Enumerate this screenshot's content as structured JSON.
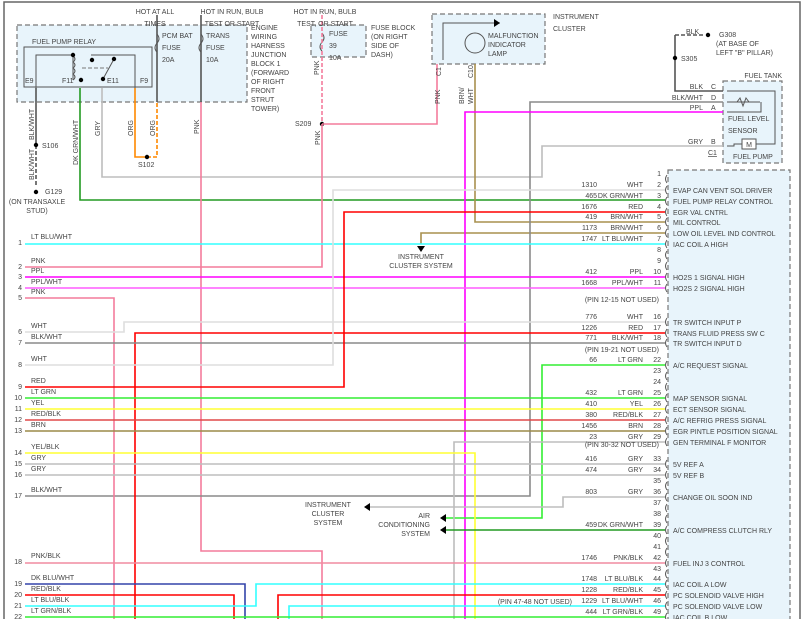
{
  "components": {
    "fuse_block_ej": {
      "hot_label_1": [
        "HOT AT ALL",
        "TIMES"
      ],
      "hot_label_2": [
        "HOT IN RUN, BULB",
        "TEST OR START"
      ],
      "pcm_fuse": [
        "PCM BAT",
        "FUSE",
        "20A"
      ],
      "trans_fuse": [
        "TRANS",
        "FUSE",
        "10A"
      ],
      "location": [
        "ENGINE",
        "WIRING",
        "HARNESS",
        "JUNCTION",
        "BLOCK 1",
        "(FORWARD",
        "OF RIGHT",
        "FRONT",
        "STRUT",
        "TOWER)"
      ]
    },
    "fuel_pump_relay": {
      "title": "FUEL PUMP RELAY",
      "pins": [
        "E9",
        "F11",
        "E11",
        "F9"
      ]
    },
    "fuse_block_dash": {
      "hot_label": [
        "HOT IN RUN, BULB",
        "TEST, OR START"
      ],
      "fuse": [
        "FUSE",
        "39",
        "10A"
      ],
      "location": [
        "FUSE BLOCK",
        "(ON RIGHT",
        "SIDE OF",
        "DASH)"
      ]
    },
    "instrument_cluster": {
      "title": [
        "INSTRUMENT",
        "CLUSTER"
      ],
      "lamp": [
        "MALFUNCTION",
        "INDICATOR",
        "LAMP"
      ],
      "pins": [
        "C1",
        "C10"
      ]
    },
    "ground_g308": {
      "wire": "BLK",
      "name": "G308",
      "location": [
        "(AT BASE OF",
        "LEFT \"B\" PILLAR)"
      ],
      "splice": "S305"
    },
    "fuel_tank": {
      "title": "FUEL TANK",
      "pins": [
        {
          "pin": "C",
          "wire": "BLK"
        },
        {
          "pin": "D",
          "wire": "BLK/WHT"
        },
        {
          "pin": "A",
          "wire": "PPL"
        },
        {
          "pin": "B",
          "wire": "GRY"
        }
      ],
      "connector": "C1",
      "sensor": [
        "FUEL LEVEL",
        "SENSOR"
      ],
      "pump": "FUEL PUMP",
      "motor_symbol": "M"
    },
    "wire_labels": {
      "relay_e9": "BLK/WHT",
      "s106": "S106",
      "ground_wire": "BLK/WHT",
      "g129": "G129",
      "g129_location": [
        "(ON TRANSAXLE",
        "STUD)"
      ],
      "relay_f11": "DK GRN/WHT",
      "relay_e11": "GRY",
      "relay_f9": "ORG",
      "pcm_fuse_out": "ORG",
      "s102": "S102",
      "trans_fuse_out": "PNK",
      "fuse39_out": "PNK",
      "s209": "S209",
      "s209_down": "PNK",
      "c1_wire": "PNK",
      "c10_wire": [
        "BRN/",
        "WHT"
      ]
    },
    "arrows": {
      "instrument_cluster_1": [
        "INSTRUMENT",
        "CLUSTER SYSTEM"
      ],
      "instrument_cluster_2": [
        "INSTRUMENT",
        "CLUSTER",
        "SYSTEM"
      ],
      "air_conditioning": [
        "AIR",
        "CONDITIONING",
        "SYSTEM"
      ]
    }
  },
  "left_connector": [
    {
      "num": "1",
      "wire": "LT BLU/WHT"
    },
    {
      "num": "2",
      "wire": "PNK"
    },
    {
      "num": "3",
      "wire": "PPL"
    },
    {
      "num": "4",
      "wire": "PPL/WHT"
    },
    {
      "num": "5",
      "wire": "PNK"
    },
    {
      "num": "6",
      "wire": "WHT"
    },
    {
      "num": "7",
      "wire": "BLK/WHT"
    },
    {
      "num": "8",
      "wire": "WHT"
    },
    {
      "num": "9",
      "wire": "RED"
    },
    {
      "num": "10",
      "wire": "LT GRN"
    },
    {
      "num": "11",
      "wire": "YEL"
    },
    {
      "num": "12",
      "wire": "RED/BLK"
    },
    {
      "num": "13",
      "wire": "BRN"
    },
    {
      "num": "14",
      "wire": "YEL/BLK"
    },
    {
      "num": "15",
      "wire": "GRY"
    },
    {
      "num": "16",
      "wire": "GRY"
    },
    {
      "num": "17",
      "wire": "BLK/WHT"
    },
    {
      "num": "18",
      "wire": "PNK/BLK"
    },
    {
      "num": "19",
      "wire": "DK BLU/WHT"
    },
    {
      "num": "20",
      "wire": "RED/BLK"
    },
    {
      "num": "21",
      "wire": "LT BLU/BLK"
    },
    {
      "num": "22",
      "wire": "LT GRN/BLK"
    }
  ],
  "pcm_connector": [
    {
      "num": "1",
      "circuit": "",
      "wire": "",
      "function": ""
    },
    {
      "num": "2",
      "circuit": "1310",
      "wire": "WHT",
      "function": "EVAP CAN VENT SOL DRIVER"
    },
    {
      "num": "3",
      "circuit": "465",
      "wire": "DK GRN/WHT",
      "function": "FUEL PUMP RELAY CONTROL"
    },
    {
      "num": "4",
      "circuit": "1676",
      "wire": "RED",
      "function": "EGR VAL CNTRL"
    },
    {
      "num": "5",
      "circuit": "419",
      "wire": "BRN/WHT",
      "function": "MIL CONTROL"
    },
    {
      "num": "6",
      "circuit": "1173",
      "wire": "BRN/WHT",
      "function": "LOW OIL LEVEL IND CONTROL"
    },
    {
      "num": "7",
      "circuit": "1747",
      "wire": "LT BLU/WHT",
      "function": "IAC COIL A HIGH"
    },
    {
      "num": "8",
      "circuit": "",
      "wire": "",
      "function": ""
    },
    {
      "num": "9",
      "circuit": "",
      "wire": "",
      "function": ""
    },
    {
      "num": "10",
      "circuit": "412",
      "wire": "PPL",
      "function": "HO2S 1 SIGNAL HIGH"
    },
    {
      "num": "11",
      "circuit": "1668",
      "wire": "PPL/WHT",
      "function": "HO2S 2 SIGNAL HIGH"
    },
    {
      "num": "16",
      "circuit": "776",
      "wire": "WHT",
      "function": "TR SWITCH INPUT P"
    },
    {
      "num": "17",
      "circuit": "1226",
      "wire": "RED",
      "function": "TRANS FLUID PRESS SW C"
    },
    {
      "num": "18",
      "circuit": "771",
      "wire": "BLK/WHT",
      "function": "TR SWITCH INPUT D"
    },
    {
      "num": "22",
      "circuit": "66",
      "wire": "LT GRN",
      "function": "A/C REQUEST SIGNAL"
    },
    {
      "num": "23",
      "circuit": "",
      "wire": "",
      "function": ""
    },
    {
      "num": "24",
      "circuit": "",
      "wire": "",
      "function": ""
    },
    {
      "num": "25",
      "circuit": "432",
      "wire": "LT GRN",
      "function": "MAP SENSOR SIGNAL"
    },
    {
      "num": "26",
      "circuit": "410",
      "wire": "YEL",
      "function": "ECT SENSOR SIGNAL"
    },
    {
      "num": "27",
      "circuit": "380",
      "wire": "RED/BLK",
      "function": "A/C REFRIG PRESS SIGNAL"
    },
    {
      "num": "28",
      "circuit": "1456",
      "wire": "BRN",
      "function": "EGR PINTLE POSITION SIGNAL"
    },
    {
      "num": "29",
      "circuit": "23",
      "wire": "GRY",
      "function": "GEN TERMINAL F MONITOR"
    },
    {
      "num": "33",
      "circuit": "416",
      "wire": "GRY",
      "function": "5V REF A"
    },
    {
      "num": "34",
      "circuit": "474",
      "wire": "GRY",
      "function": "5V REF B"
    },
    {
      "num": "35",
      "circuit": "",
      "wire": "",
      "function": ""
    },
    {
      "num": "36",
      "circuit": "803",
      "wire": "GRY",
      "function": "CHANGE OIL SOON IND"
    },
    {
      "num": "37",
      "circuit": "",
      "wire": "",
      "function": ""
    },
    {
      "num": "38",
      "circuit": "",
      "wire": "",
      "function": ""
    },
    {
      "num": "39",
      "circuit": "459",
      "wire": "DK GRN/WHT",
      "function": "A/C COMPRESS CLUTCH RLY"
    },
    {
      "num": "40",
      "circuit": "",
      "wire": "",
      "function": ""
    },
    {
      "num": "41",
      "circuit": "",
      "wire": "",
      "function": ""
    },
    {
      "num": "42",
      "circuit": "1746",
      "wire": "PNK/BLK",
      "function": "FUEL INJ 3 CONTROL"
    },
    {
      "num": "43",
      "circuit": "",
      "wire": "",
      "function": ""
    },
    {
      "num": "44",
      "circuit": "1748",
      "wire": "LT BLU/BLK",
      "function": "IAC COIL A LOW"
    },
    {
      "num": "45",
      "circuit": "1228",
      "wire": "RED/BLK",
      "function": "PC SOLENOID VALVE HIGH"
    },
    {
      "num": "46",
      "circuit": "1229",
      "wire": "LT BLU/WHT",
      "function": "PC SOLENOID VALVE LOW"
    },
    {
      "num": "49",
      "circuit": "444",
      "wire": "LT GRN/BLK",
      "function": "IAC COIL B LOW"
    }
  ],
  "pcm_notes": [
    "(PIN 12-15 NOT USED)",
    "(PIN 19-21 NOT USED)",
    "(PIN 30-32 NOT USED)",
    "(PIN 47-48 NOT USED)"
  ],
  "wire_colors": {
    "PNK": "#f47c9c",
    "PPL": "#ff00ff",
    "PPL/WHT": "#ff5cff",
    "LT BLU": "#33ffff",
    "RED": "#ff0000",
    "LT GRN": "#33ee33",
    "YEL": "#ffff33",
    "RED/BLK": "#e04848",
    "BRN": "#9c8a48",
    "GRY": "#bdbdbd",
    "WHT": "#dedede",
    "BLK/WHT": "#8a8a8a",
    "BLK": "#555555",
    "DK GRN": "#229a22",
    "DK BLU": "#3344aa",
    "ORG": "#ff8800",
    "BRN/WHT": "#a8904e",
    "PNK/BLK": "#f08ca0"
  }
}
